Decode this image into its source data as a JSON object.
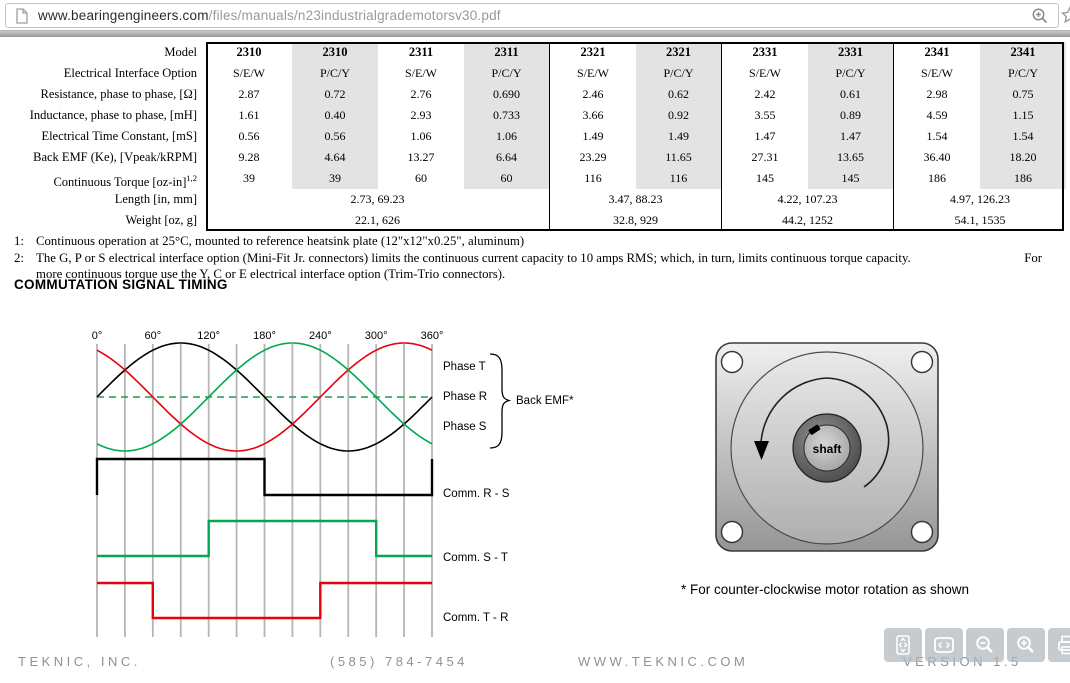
{
  "browser": {
    "url_domain": "www.bearingengineers.com",
    "url_path": "/files/manuals/n23industrialgrademotorsv30.pdf"
  },
  "table": {
    "row_labels": [
      {
        "text": "Model"
      },
      {
        "text": "Electrical Interface Option"
      },
      {
        "text": "Resistance, phase to phase, [Ω]"
      },
      {
        "text": "Inductance, phase to phase, [mH]"
      },
      {
        "text": "Electrical Time Constant,  [mS]"
      },
      {
        "text": "Back EMF (Ke), [Vpeak/kRPM]"
      },
      {
        "text": "Continuous Torque [oz-in]",
        "sup": "1,2"
      },
      {
        "text": "Length [in, mm]"
      },
      {
        "text": "Weight [oz, g]"
      }
    ],
    "data_rows": [
      [
        "2310",
        "2310",
        "2311",
        "2311",
        "2321",
        "2321",
        "2331",
        "2331",
        "2341",
        "2341"
      ],
      [
        "S/E/W",
        "P/C/Y",
        "S/E/W",
        "P/C/Y",
        "S/E/W",
        "P/C/Y",
        "S/E/W",
        "P/C/Y",
        "S/E/W",
        "P/C/Y"
      ],
      [
        "2.87",
        "0.72",
        "2.76",
        "0.690",
        "2.46",
        "0.62",
        "2.42",
        "0.61",
        "2.98",
        "0.75"
      ],
      [
        "1.61",
        "0.40",
        "2.93",
        "0.733",
        "3.66",
        "0.92",
        "3.55",
        "0.89",
        "4.59",
        "1.15"
      ],
      [
        "0.56",
        "0.56",
        "1.06",
        "1.06",
        "1.49",
        "1.49",
        "1.47",
        "1.47",
        "1.54",
        "1.54"
      ],
      [
        "9.28",
        "4.64",
        "13.27",
        "6.64",
        "23.29",
        "11.65",
        "27.31",
        "13.65",
        "36.40",
        "18.20"
      ],
      [
        "39",
        "39",
        "60",
        "60",
        "116",
        "116",
        "145",
        "145",
        "186",
        "186"
      ]
    ],
    "length_row": [
      "2.73, 69.23",
      "3.47, 88.23",
      "4.22, 107.23",
      "4.97, 126.23"
    ],
    "weight_row": [
      "22.1, 626",
      "32.8,  929",
      "44.2, 1252",
      "54.1, 1535"
    ],
    "group_spans": [
      4,
      2,
      2,
      2
    ]
  },
  "footnotes": {
    "fn1": {
      "num": "1:",
      "text": "Continuous operation at 25°C, mounted to reference heatsink plate (12\"x12\"x0.25\", aluminum)"
    },
    "fn2": {
      "num": "2:",
      "text": "The G, P or S electrical interface option (Mini-Fit Jr. connectors) limits the continuous current capacity to 10 amps RMS; which, in turn, limits continuous torque capacity.",
      "tail": "For"
    },
    "fn2b": {
      "text": "more continuous torque use the Y, C or E electrical interface option (Trim-Trio connectors)."
    }
  },
  "chart_data": {
    "type": "line",
    "title": "COMMUTATION SIGNAL TIMING",
    "x_ticks": [
      "0°",
      "60°",
      "120°",
      "180°",
      "240°",
      "300°",
      "360°"
    ],
    "x_range_deg": [
      0,
      360
    ],
    "grid_step_deg": 30,
    "grid_on": true,
    "back_emf": {
      "label": "Back EMF*",
      "phase_labels": [
        "Phase T",
        "Phase R",
        "Phase S"
      ],
      "waves": [
        {
          "name": "sine-black",
          "color": "#000000",
          "phase_offset_deg": 0,
          "amplitude": 1
        },
        {
          "name": "sine-red",
          "color": "#e8000d",
          "phase_offset_deg": 120,
          "amplitude": 1
        },
        {
          "name": "sine-green",
          "color": "#00a94f",
          "phase_offset_deg": -120,
          "amplitude": 1
        }
      ],
      "zero_line": {
        "style": "dashed",
        "color": "#1d9e50"
      }
    },
    "commutation_signals": [
      {
        "label": "Comm. R - S",
        "color": "#000000",
        "high_deg": [
          [
            0,
            180
          ]
        ],
        "start_stub": true,
        "end_stub": true
      },
      {
        "label": "Comm. S - T",
        "color": "#00a94f",
        "high_deg": [
          [
            120,
            300
          ]
        ]
      },
      {
        "label": "Comm. T - R",
        "color": "#e8000d",
        "high_deg": [
          [
            0,
            60
          ],
          [
            240,
            360
          ]
        ]
      }
    ]
  },
  "motor": {
    "shaft_label": "shaft",
    "caption": "* For counter-clockwise motor rotation as shown",
    "rotation": "counter-clockwise"
  },
  "footer": {
    "company": "TEKNIC, INC.",
    "phone": "(585) 784-7454",
    "website": "WWW.TEKNIC.COM",
    "version": "VERSION 1.5"
  },
  "viewer": {
    "buttons": [
      "fit-page",
      "fit-width",
      "zoom-out",
      "zoom-in",
      "print"
    ]
  }
}
